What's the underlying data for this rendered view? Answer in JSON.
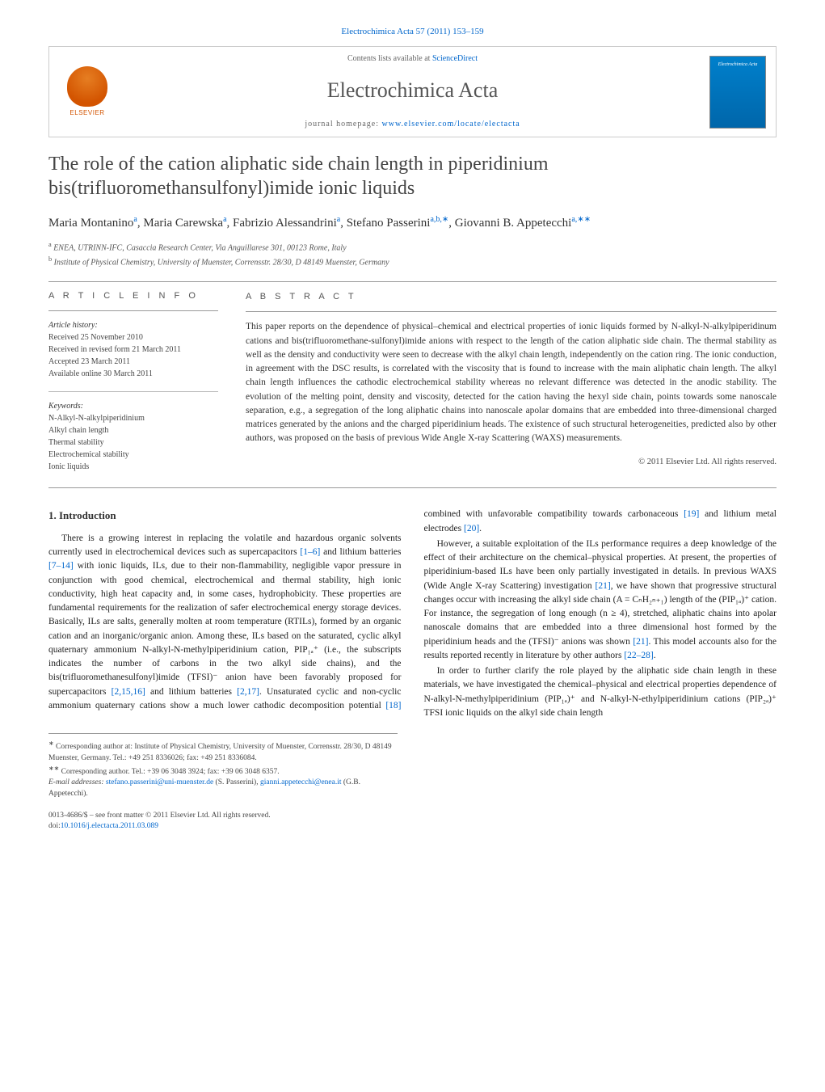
{
  "journal_ref": "Electrochimica Acta 57 (2011) 153–159",
  "header": {
    "contents_prefix": "Contents lists available at ",
    "contents_link": "ScienceDirect",
    "journal_name": "Electrochimica Acta",
    "homepage_prefix": "journal homepage: ",
    "homepage_url": "www.elsevier.com/locate/electacta",
    "publisher_logo_text": "ELSEVIER"
  },
  "title": "The role of the cation aliphatic side chain length in piperidinium bis(trifluoromethansulfonyl)imide ionic liquids",
  "authors": [
    {
      "name": "Maria Montanino",
      "affil": "a"
    },
    {
      "name": "Maria Carewska",
      "affil": "a"
    },
    {
      "name": "Fabrizio Alessandrini",
      "affil": "a"
    },
    {
      "name": "Stefano Passerini",
      "affil": "a,b,",
      "mark": "∗"
    },
    {
      "name": "Giovanni B. Appetecchi",
      "affil": "a,",
      "mark": "∗∗"
    }
  ],
  "affiliations": {
    "a": "ENEA, UTRINN-IFC, Casaccia Research Center, Via Anguillarese 301, 00123 Rome, Italy",
    "b": "Institute of Physical Chemistry, University of Muenster, Corrensstr. 28/30, D 48149 Muenster, Germany"
  },
  "article_info": {
    "label": "A R T I C L E   I N F O",
    "history_heading": "Article history:",
    "history": [
      "Received 25 November 2010",
      "Received in revised form 21 March 2011",
      "Accepted 23 March 2011",
      "Available online 30 March 2011"
    ],
    "keywords_heading": "Keywords:",
    "keywords": [
      "N-Alkyl-N-alkylpiperidinium",
      "Alkyl chain length",
      "Thermal stability",
      "Electrochemical stability",
      "Ionic liquids"
    ]
  },
  "abstract": {
    "label": "A B S T R A C T",
    "text": "This paper reports on the dependence of physical–chemical and electrical properties of ionic liquids formed by N-alkyl-N-alkylpiperidinum cations and bis(trifluoromethane-sulfonyl)imide anions with respect to the length of the cation aliphatic side chain. The thermal stability as well as the density and conductivity were seen to decrease with the alkyl chain length, independently on the cation ring. The ionic conduction, in agreement with the DSC results, is correlated with the viscosity that is found to increase with the main aliphatic chain length. The alkyl chain length influences the cathodic electrochemical stability whereas no relevant difference was detected in the anodic stability. The evolution of the melting point, density and viscosity, detected for the cation having the hexyl side chain, points towards some nanoscale separation, e.g., a segregation of the long aliphatic chains into nanoscale apolar domains that are embedded into three-dimensional charged matrices generated by the anions and the charged piperidinium heads. The existence of such structural heterogeneities, predicted also by other authors, was proposed on the basis of previous Wide Angle X-ray Scattering (WAXS) measurements.",
    "copyright": "© 2011 Elsevier Ltd. All rights reserved."
  },
  "body": {
    "section_heading": "1. Introduction",
    "para1_a": "There is a growing interest in replacing the volatile and hazardous organic solvents currently used in electrochemical devices such as supercapacitors ",
    "ref1": "[1–6]",
    "para1_b": " and lithium batteries ",
    "ref2": "[7–14]",
    "para1_c": " with ionic liquids, ILs, due to their non-flammability, negligible vapor pressure in conjunction with good chemical, electrochemical and thermal stability, high ionic conductivity, high heat capacity and, in some cases, hydrophobicity. These properties are fundamental requirements for the realization of safer electrochemical energy storage devices. Basically, ILs are salts, generally molten at room temperature (RTILs), formed by an organic cation and an inorganic/organic anion. Among these, ILs based on the saturated, cyclic alkyl quaternary ammonium N-alkyl-N-methylpiperidinium cation, PIP₁ₐ⁺ (i.e., the subscripts indicates the number of carbons in the two alkyl side chains), and the ",
    "para2_a": "bis(trifluoromethanesulfonyl)imide (TFSI)⁻ anion have been favorably proposed for supercapacitors ",
    "ref3": "[2,15,16]",
    "para2_b": " and lithium batteries ",
    "ref4": "[2,17]",
    "para2_c": ". Unsaturated cyclic and non-cyclic ammonium quaternary cations show a much lower cathodic decomposition potential ",
    "ref5": "[18]",
    "para2_d": " combined with unfavorable compatibility towards carbonaceous ",
    "ref6": "[19]",
    "para2_e": " and lithium metal electrodes ",
    "ref7": "[20]",
    "para2_f": ".",
    "para3_a": "However, a suitable exploitation of the ILs performance requires a deep knowledge of the effect of their architecture on the chemical–physical properties. At present, the properties of piperidinium-based ILs have been only partially investigated in details. In previous WAXS (Wide Angle X-ray Scattering) investigation ",
    "ref8": "[21]",
    "para3_b": ", we have shown that progressive structural changes occur with increasing the alkyl side chain (A = CₙH₂ₙ₊₁) length of the (PIP₁ₐ)⁺ cation. For instance, the segregation of long enough (n ≥ 4), stretched, aliphatic chains into apolar nanoscale domains that are embedded into a three dimensional host formed by the piperidinium heads and the (TFSI)⁻ anions was shown ",
    "ref9": "[21]",
    "para3_c": ". This model accounts also for the results reported recently in literature by other authors ",
    "ref10": "[22–28]",
    "para3_d": ".",
    "para4": "In order to further clarify the role played by the aliphatic side chain length in these materials, we have investigated the chemical–physical and electrical properties dependence of N-alkyl-N-methylpiperidinium (PIP₁ₐ)⁺ and N-alkyl-N-ethylpiperidinium cations (PIP₂ₐ)⁺ TFSI ionic liquids on the alkyl side chain length"
  },
  "footnotes": {
    "star": "Corresponding author at: Institute of Physical Chemistry, University of Muenster, Corrensstr. 28/30, D 48149 Muenster, Germany. Tel.: +49 251 8336026; fax: +49 251 8336084.",
    "dblstar": "Corresponding author. Tel.: +39 06 3048 3924; fax: +39 06 3048 6357.",
    "email_label": "E-mail addresses: ",
    "email1": "stefano.passerini@uni-muenster.de",
    "email1_who": " (S. Passerini), ",
    "email2": "gianni.appetecchi@enea.it",
    "email2_who": " (G.B. Appetecchi)."
  },
  "footer": {
    "issn": "0013-4686/$ – see front matter © 2011 Elsevier Ltd. All rights reserved.",
    "doi_label": "doi:",
    "doi": "10.1016/j.electacta.2011.03.089"
  },
  "colors": {
    "link": "#0066cc",
    "text": "#333333",
    "rule": "#999999",
    "elsevier_orange": "#d35400",
    "cover_blue": "#0066aa"
  }
}
